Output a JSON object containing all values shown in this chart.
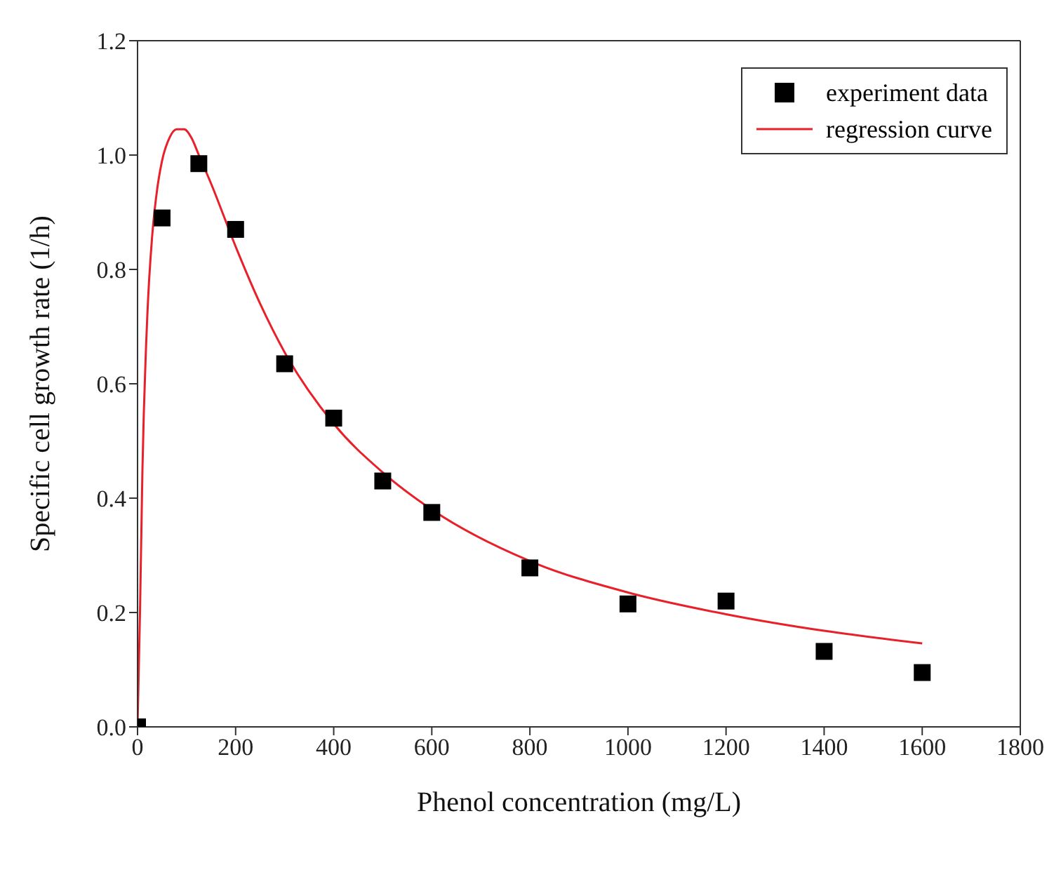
{
  "chart_data": {
    "type": "scatter",
    "xlabel": "Phenol concentration (mg/L)",
    "ylabel": "Specific cell growth rate (1/h)",
    "xlim": [
      0,
      1800
    ],
    "xticks": [
      0,
      200,
      400,
      600,
      800,
      1000,
      1200,
      1400,
      1600,
      1800
    ],
    "ylim": [
      0,
      1.2
    ],
    "yticks": [
      {
        "value": 0,
        "label": "0.0"
      },
      0.2,
      0.4,
      0.6,
      0.8,
      {
        "value": 1,
        "label": "1.0"
      },
      1.2
    ],
    "grid": false,
    "legend": "top right",
    "series": [
      {
        "name": "experiment data",
        "color": "#000000",
        "marker": "square",
        "x": [
          0,
          50,
          125,
          200,
          300,
          400,
          500,
          600,
          800,
          1000,
          1200,
          1400,
          1600
        ],
        "values": [
          0,
          0.89,
          0.985,
          0.87,
          0.635,
          0.54,
          0.43,
          0.375,
          0.278,
          0.215,
          0.22,
          0.132,
          0.095
        ]
      },
      {
        "name": "regression curve",
        "type": "line",
        "color": "#e8202a",
        "marker": "none",
        "line_style": "solid",
        "x": [
          0,
          5,
          10,
          20,
          30,
          40,
          50,
          65,
          80,
          95,
          110,
          125,
          150,
          200,
          250,
          300,
          400,
          500,
          600,
          800,
          1000,
          1200,
          1400,
          1600
        ],
        "values": [
          0,
          0.2,
          0.45,
          0.72,
          0.86,
          0.94,
          0.99,
          1.03,
          1.045,
          1.045,
          1.03,
          1.0,
          0.95,
          0.84,
          0.74,
          0.655,
          0.53,
          0.445,
          0.38,
          0.29,
          0.235,
          0.197,
          0.168,
          0.146
        ]
      }
    ]
  }
}
